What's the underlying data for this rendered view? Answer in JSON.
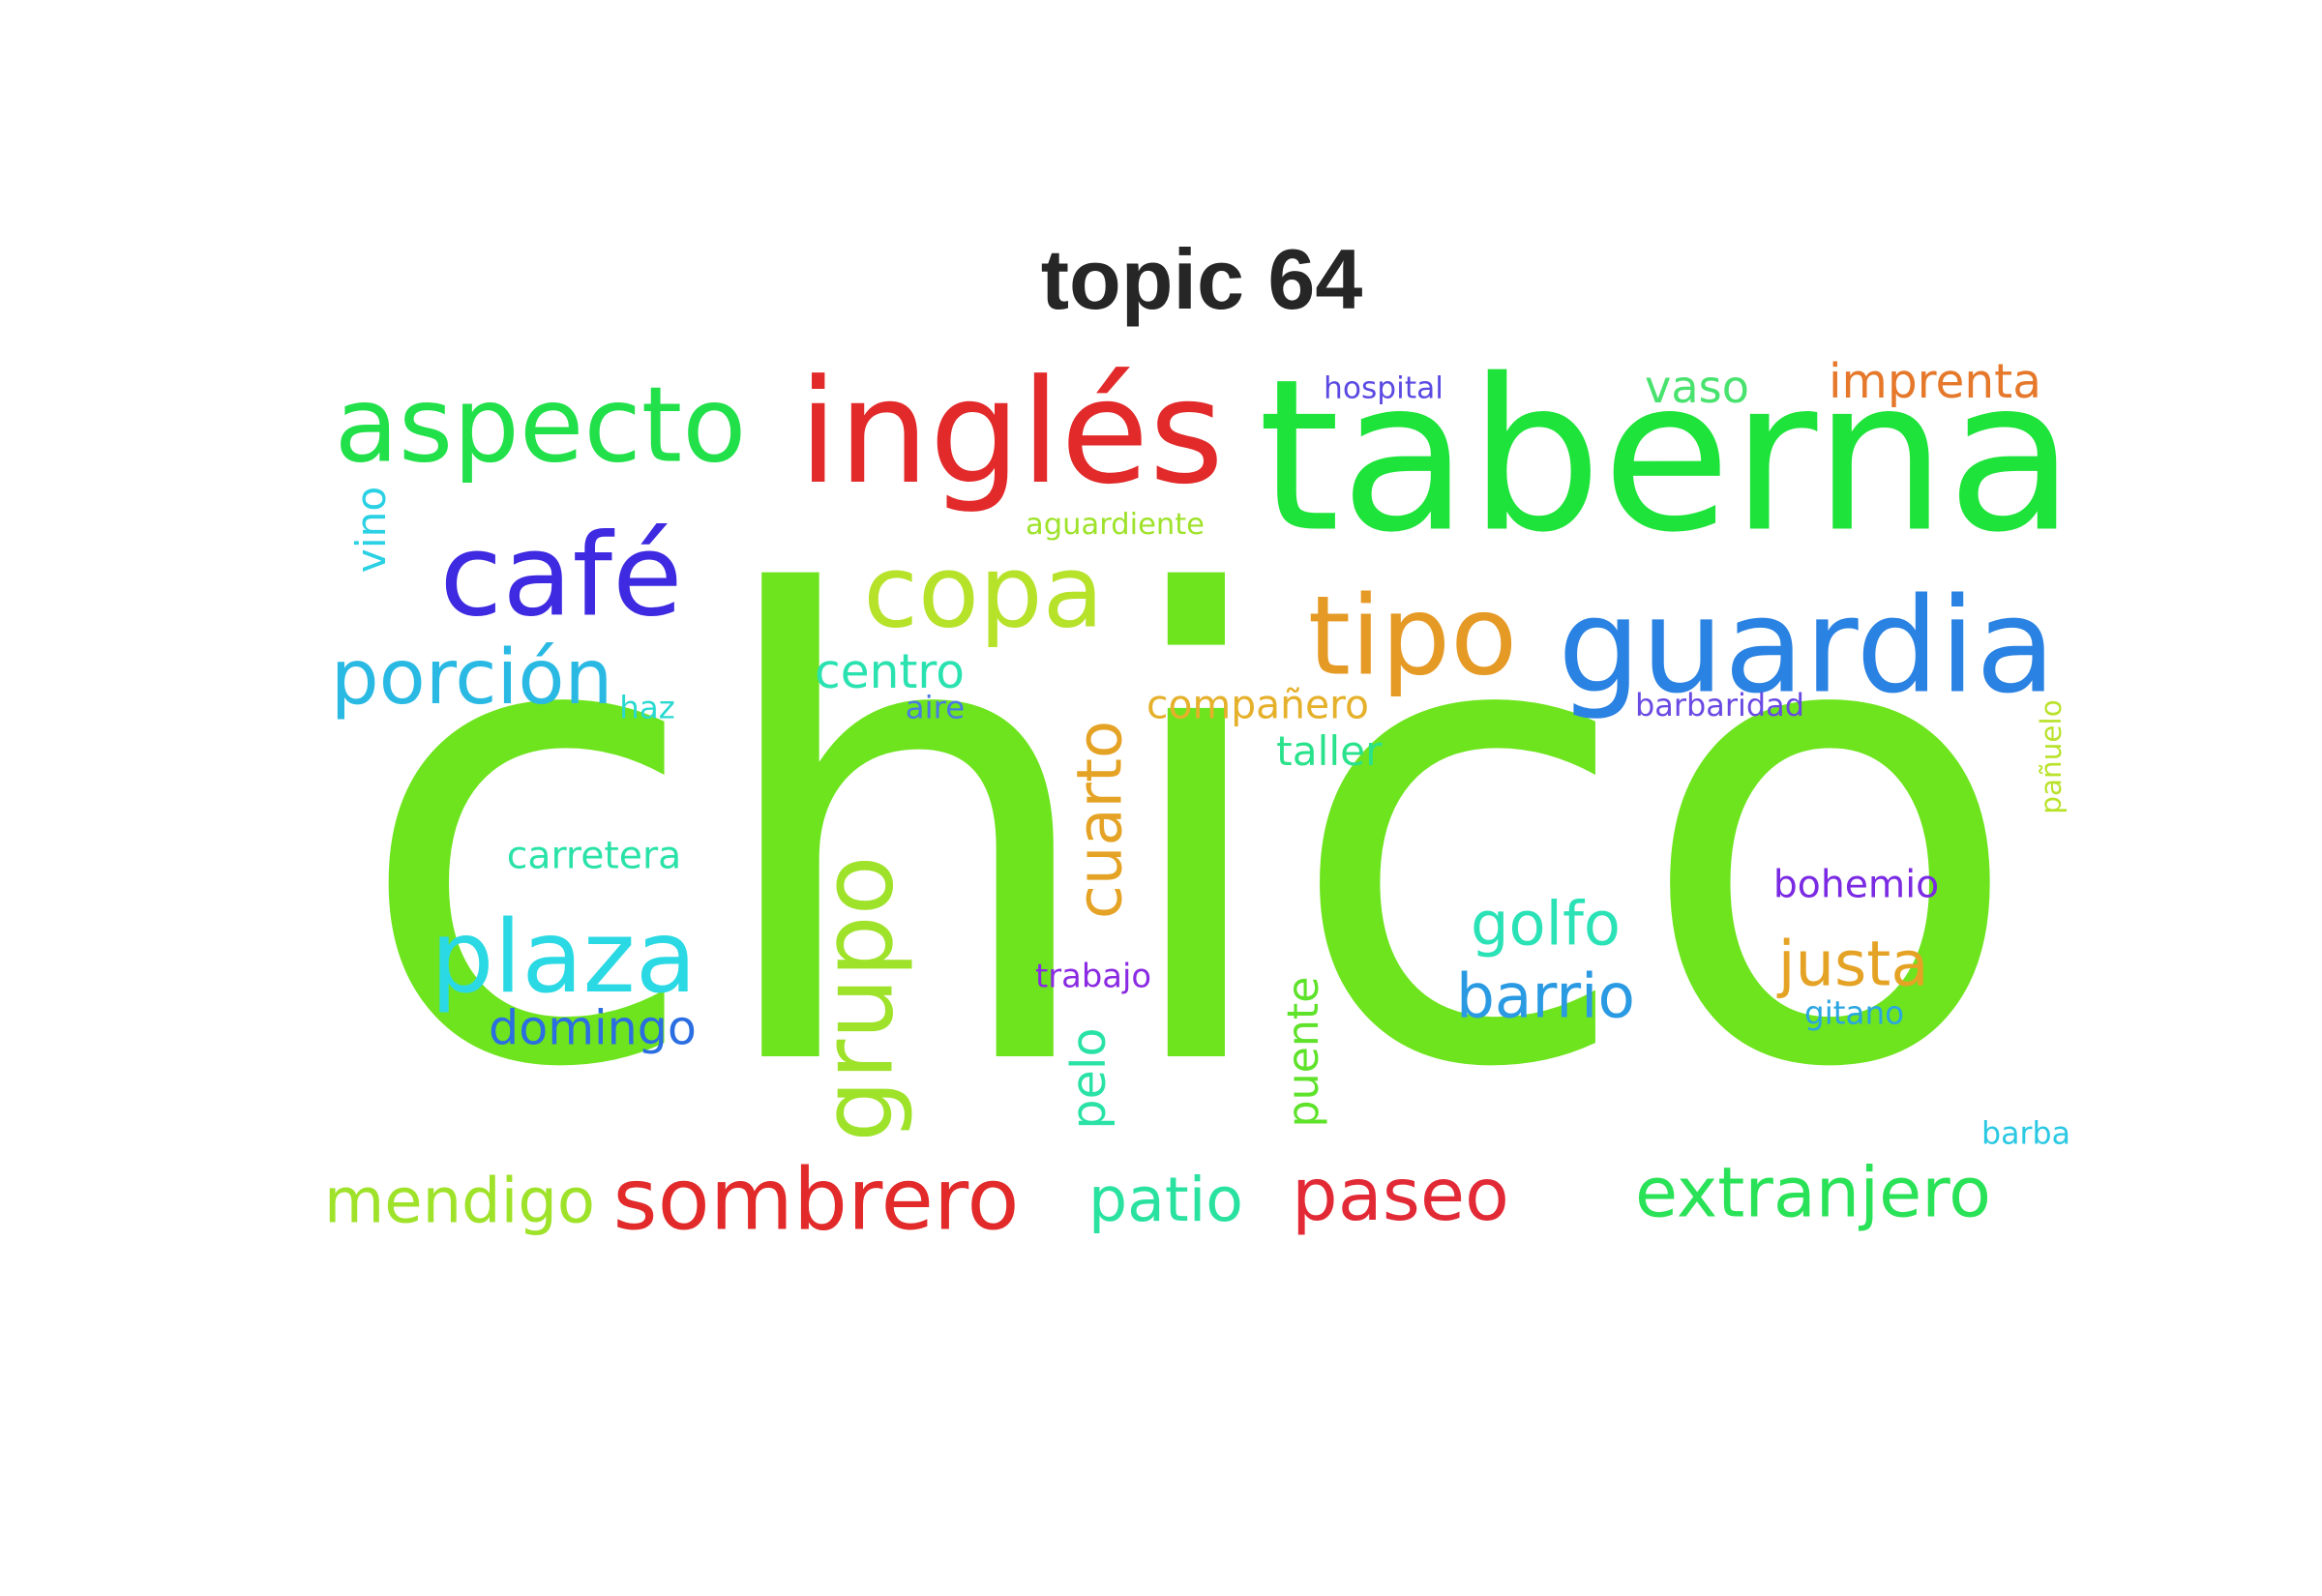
{
  "title": "topic 64",
  "words": [
    {
      "text": "chico",
      "color": "#6ee41e"
    },
    {
      "text": "taberna",
      "color": "#1ee33a"
    },
    {
      "text": "inglés",
      "color": "#e22a2a"
    },
    {
      "text": "aspecto",
      "color": "#21e04a"
    },
    {
      "text": "guardia",
      "color": "#2a82e2"
    },
    {
      "text": "tipo",
      "color": "#e59a26"
    },
    {
      "text": "copa",
      "color": "#b6e22a"
    },
    {
      "text": "café",
      "color": "#3e2ae0"
    },
    {
      "text": "plaza",
      "color": "#2ad9e3"
    },
    {
      "text": "sombrero",
      "color": "#e22a2a"
    },
    {
      "text": "grupo",
      "color": "#9fe22a"
    },
    {
      "text": "porción",
      "color": "#2ab9e3"
    },
    {
      "text": "paseo",
      "color": "#e22a36"
    },
    {
      "text": "extranjero",
      "color": "#2ae257"
    },
    {
      "text": "cuarto",
      "color": "#e5a326"
    },
    {
      "text": "mendigo",
      "color": "#9fe22a"
    },
    {
      "text": "barrio",
      "color": "#2a9ae2"
    },
    {
      "text": "golfo",
      "color": "#2ae2b6"
    },
    {
      "text": "patio",
      "color": "#2ae2a0"
    },
    {
      "text": "justa",
      "color": "#e5a326"
    },
    {
      "text": "pelo",
      "color": "#2ae2a6"
    },
    {
      "text": "domingo",
      "color": "#2a6ee2"
    },
    {
      "text": "imprenta",
      "color": "#e5782a"
    },
    {
      "text": "puente",
      "color": "#5ee22a"
    },
    {
      "text": "vaso",
      "color": "#48e26e"
    },
    {
      "text": "centro",
      "color": "#2ae2b0"
    },
    {
      "text": "compañero",
      "color": "#e5b02a"
    },
    {
      "text": "carretera",
      "color": "#2ae2a8"
    },
    {
      "text": "taller",
      "color": "#2ae28c"
    },
    {
      "text": "bohemio",
      "color": "#7a2ae2"
    },
    {
      "text": "vino",
      "color": "#2ad0e3"
    },
    {
      "text": "aguardiente",
      "color": "#9ee22a"
    },
    {
      "text": "hospital",
      "color": "#5a4ae2"
    },
    {
      "text": "barbaridad",
      "color": "#6a4ae2"
    },
    {
      "text": "trabajo",
      "color": "#8a2ae2"
    },
    {
      "text": "gitano",
      "color": "#2aa6e2"
    },
    {
      "text": "pañuelo",
      "color": "#b9e22a"
    },
    {
      "text": "haz",
      "color": "#2ad9d0"
    },
    {
      "text": "aire",
      "color": "#4a7ae2"
    },
    {
      "text": "barba",
      "color": "#2ac8e3"
    }
  ]
}
